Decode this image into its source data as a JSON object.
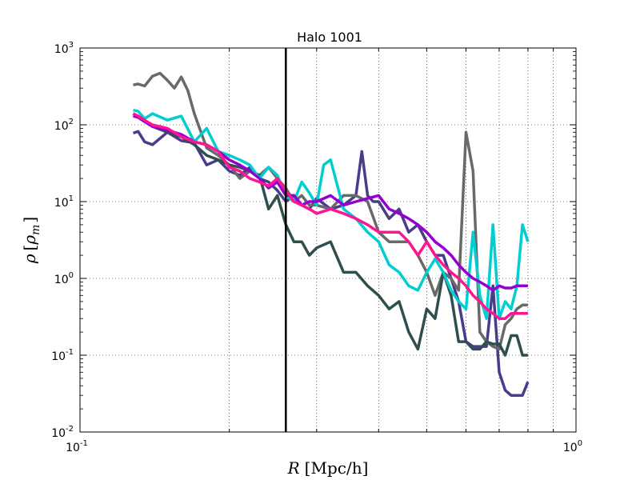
{
  "chart_data": {
    "type": "line",
    "title": "Halo 1001",
    "xlabel": "R [Mpc/h]",
    "ylabel": "ρ [ρ_m]",
    "xscale": "log",
    "yscale": "log",
    "xlim": [
      0.1,
      1.0
    ],
    "ylim": [
      0.01,
      1000
    ],
    "grid": true,
    "x_ticks": [
      {
        "value": 0.1,
        "base": "10",
        "exp": "-1"
      },
      {
        "value": 1.0,
        "base": "10",
        "exp": "0"
      }
    ],
    "y_ticks": [
      {
        "value": 0.01,
        "base": "10",
        "exp": "-2"
      },
      {
        "value": 0.1,
        "base": "10",
        "exp": "-1"
      },
      {
        "value": 1,
        "base": "10",
        "exp": "0"
      },
      {
        "value": 10,
        "base": "10",
        "exp": "1"
      },
      {
        "value": 100,
        "base": "10",
        "exp": "2"
      },
      {
        "value": 1000,
        "base": "10",
        "exp": "3"
      }
    ],
    "vline": {
      "x": 0.26,
      "color": "#000000"
    },
    "series": [
      {
        "color": "#483d8b",
        "x": [
          0.128,
          0.131,
          0.135,
          0.14,
          0.15,
          0.16,
          0.17,
          0.18,
          0.19,
          0.2,
          0.21,
          0.22,
          0.23,
          0.24,
          0.25,
          0.26,
          0.27,
          0.28,
          0.29,
          0.3,
          0.32,
          0.34,
          0.36,
          0.37,
          0.38,
          0.39,
          0.4,
          0.42,
          0.44,
          0.46,
          0.48,
          0.5,
          0.52,
          0.54,
          0.56,
          0.58,
          0.6,
          0.62,
          0.64,
          0.66,
          0.68,
          0.7,
          0.72,
          0.74,
          0.76,
          0.78,
          0.8
        ],
        "y": [
          78,
          82,
          60,
          55,
          80,
          62,
          58,
          30,
          35,
          25,
          22,
          28,
          20,
          18,
          14,
          10,
          12,
          9,
          8,
          11,
          8,
          9,
          12,
          45,
          12,
          10,
          10,
          6,
          8,
          4,
          5,
          3,
          2,
          2,
          1,
          0.5,
          0.15,
          0.13,
          0.13,
          0.13,
          0.8,
          0.06,
          0.035,
          0.03,
          0.03,
          0.03,
          0.045
        ]
      },
      {
        "color": "#696969",
        "x": [
          0.128,
          0.131,
          0.135,
          0.14,
          0.145,
          0.15,
          0.155,
          0.16,
          0.165,
          0.17,
          0.18,
          0.19,
          0.2,
          0.21,
          0.22,
          0.23,
          0.24,
          0.25,
          0.26,
          0.27,
          0.28,
          0.29,
          0.3,
          0.32,
          0.34,
          0.36,
          0.38,
          0.4,
          0.42,
          0.44,
          0.46,
          0.48,
          0.5,
          0.52,
          0.54,
          0.56,
          0.58,
          0.6,
          0.62,
          0.64,
          0.66,
          0.68,
          0.7,
          0.72,
          0.74,
          0.76,
          0.78,
          0.8
        ],
        "y": [
          330,
          340,
          320,
          430,
          470,
          380,
          300,
          420,
          280,
          140,
          50,
          40,
          30,
          20,
          25,
          22,
          28,
          20,
          15,
          10,
          12,
          9,
          9,
          8,
          12,
          12,
          10,
          4,
          3,
          3,
          3,
          2,
          1.2,
          0.6,
          1.2,
          1.0,
          0.7,
          80,
          25,
          0.2,
          0.15,
          0.13,
          0.12,
          0.25,
          0.3,
          0.4,
          0.45,
          0.45
        ]
      },
      {
        "color": "#2f4f4f",
        "x": [
          0.128,
          0.131,
          0.135,
          0.14,
          0.15,
          0.16,
          0.17,
          0.18,
          0.19,
          0.2,
          0.21,
          0.22,
          0.23,
          0.24,
          0.25,
          0.26,
          0.27,
          0.28,
          0.29,
          0.3,
          0.32,
          0.34,
          0.36,
          0.38,
          0.4,
          0.42,
          0.44,
          0.46,
          0.48,
          0.5,
          0.52,
          0.54,
          0.56,
          0.58,
          0.6,
          0.62,
          0.64,
          0.66,
          0.68,
          0.7,
          0.72,
          0.74,
          0.76,
          0.78,
          0.8
        ],
        "y": [
          140,
          125,
          110,
          95,
          80,
          70,
          55,
          40,
          35,
          30,
          28,
          25,
          22,
          8,
          12,
          5,
          3,
          3,
          2,
          2.5,
          3,
          1.2,
          1.2,
          0.8,
          0.6,
          0.4,
          0.5,
          0.2,
          0.12,
          0.4,
          0.3,
          1.2,
          0.6,
          0.15,
          0.15,
          0.12,
          0.12,
          0.15,
          0.14,
          0.14,
          0.1,
          0.18,
          0.18,
          0.1,
          0.1
        ]
      },
      {
        "color": "#00ced1",
        "x": [
          0.128,
          0.131,
          0.135,
          0.14,
          0.15,
          0.16,
          0.17,
          0.18,
          0.19,
          0.2,
          0.21,
          0.22,
          0.23,
          0.24,
          0.25,
          0.26,
          0.27,
          0.28,
          0.29,
          0.3,
          0.31,
          0.32,
          0.34,
          0.36,
          0.38,
          0.4,
          0.42,
          0.44,
          0.46,
          0.48,
          0.5,
          0.52,
          0.54,
          0.56,
          0.58,
          0.6,
          0.62,
          0.64,
          0.66,
          0.68,
          0.7,
          0.72,
          0.74,
          0.76,
          0.78,
          0.8
        ],
        "y": [
          155,
          150,
          120,
          140,
          115,
          130,
          60,
          90,
          45,
          40,
          35,
          30,
          20,
          28,
          22,
          12,
          10,
          18,
          13,
          9,
          30,
          35,
          8,
          6,
          4,
          3,
          1.5,
          1.2,
          0.8,
          0.7,
          1.2,
          1.8,
          1.2,
          0.7,
          0.5,
          0.4,
          4,
          0.6,
          0.3,
          5,
          0.3,
          0.5,
          0.4,
          0.8,
          5,
          3
        ]
      },
      {
        "color": "#9400d3",
        "x": [
          0.128,
          0.131,
          0.135,
          0.14,
          0.15,
          0.16,
          0.17,
          0.18,
          0.19,
          0.2,
          0.21,
          0.22,
          0.23,
          0.24,
          0.25,
          0.26,
          0.27,
          0.28,
          0.29,
          0.3,
          0.32,
          0.34,
          0.36,
          0.38,
          0.4,
          0.42,
          0.44,
          0.46,
          0.48,
          0.5,
          0.52,
          0.54,
          0.56,
          0.58,
          0.6,
          0.62,
          0.64,
          0.66,
          0.68,
          0.7,
          0.72,
          0.74,
          0.76,
          0.78,
          0.8
        ],
        "y": [
          130,
          125,
          110,
          95,
          85,
          75,
          60,
          55,
          45,
          35,
          30,
          25,
          20,
          15,
          18,
          12,
          12,
          9,
          10,
          10,
          12,
          9,
          10,
          11,
          12,
          8,
          7,
          6,
          5,
          4,
          3,
          2.5,
          2,
          1.5,
          1.2,
          1.0,
          0.9,
          0.8,
          0.7,
          0.8,
          0.75,
          0.75,
          0.8,
          0.8,
          0.8
        ]
      },
      {
        "color": "#ff1493",
        "x": [
          0.128,
          0.131,
          0.135,
          0.14,
          0.15,
          0.16,
          0.17,
          0.18,
          0.19,
          0.2,
          0.21,
          0.22,
          0.23,
          0.24,
          0.25,
          0.26,
          0.27,
          0.28,
          0.29,
          0.3,
          0.32,
          0.34,
          0.36,
          0.38,
          0.4,
          0.42,
          0.44,
          0.46,
          0.48,
          0.5,
          0.52,
          0.54,
          0.56,
          0.58,
          0.6,
          0.62,
          0.64,
          0.66,
          0.68,
          0.7,
          0.72,
          0.74,
          0.76,
          0.78,
          0.8
        ],
        "y": [
          140,
          130,
          115,
          100,
          90,
          70,
          60,
          55,
          45,
          28,
          25,
          20,
          18,
          16,
          20,
          14,
          10,
          9,
          8,
          7,
          8,
          7,
          6,
          5,
          4,
          4,
          4,
          3,
          2,
          3,
          2,
          1.5,
          1.2,
          1.0,
          0.8,
          0.6,
          0.5,
          0.4,
          0.35,
          0.3,
          0.3,
          0.35,
          0.35,
          0.35,
          0.35
        ]
      }
    ]
  }
}
